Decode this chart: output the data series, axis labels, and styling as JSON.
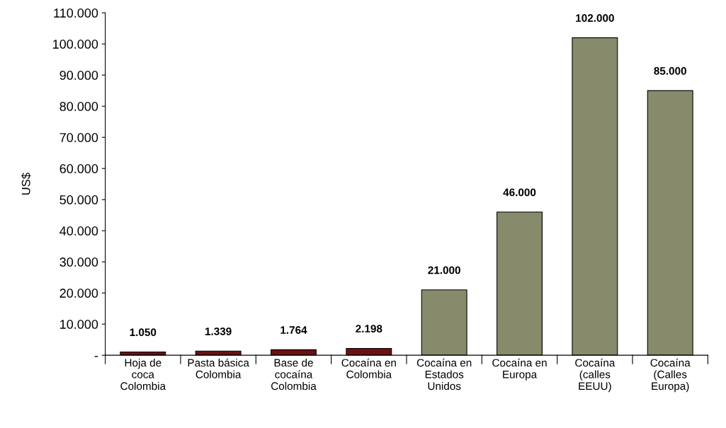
{
  "chart_data": {
    "type": "bar",
    "ylabel": "US$",
    "categories": [
      "Hoja de\ncoca\nColombia",
      "Pasta básica\nColombia",
      "Base de\ncocaína\nColombia",
      "Cocaína en\nColombia",
      "Cocaína en\nEstados\nUnidos",
      "Cocaína en\nEuropa",
      "Cocaína\n(calles\nEEUU)",
      "Cocaína\n(Calles\nEuropa)"
    ],
    "values": [
      1050,
      1339,
      1764,
      2198,
      21000,
      46000,
      102000,
      85000
    ],
    "colors": [
      "#6b1014",
      "#6b1014",
      "#6b1014",
      "#6b1014",
      "#878b6c",
      "#878b6c",
      "#878b6c",
      "#878b6c"
    ],
    "value_labels": [
      "1.050",
      "1.339",
      "1.764",
      "2.198",
      "21.000",
      "46.000",
      "102.000",
      "85.000"
    ],
    "ylim": [
      0,
      110000
    ],
    "yticks": [
      {
        "value": 0,
        "label": "-"
      },
      {
        "value": 10000,
        "label": "10.000"
      },
      {
        "value": 20000,
        "label": "20.000"
      },
      {
        "value": 30000,
        "label": "30.000"
      },
      {
        "value": 40000,
        "label": "40.000"
      },
      {
        "value": 50000,
        "label": "50.000"
      },
      {
        "value": 60000,
        "label": "60.000"
      },
      {
        "value": 70000,
        "label": "70.000"
      },
      {
        "value": 80000,
        "label": "80.000"
      },
      {
        "value": 90000,
        "label": "90.000"
      },
      {
        "value": 100000,
        "label": "100.000"
      },
      {
        "value": 110000,
        "label": "110.000"
      }
    ],
    "grid": false
  }
}
